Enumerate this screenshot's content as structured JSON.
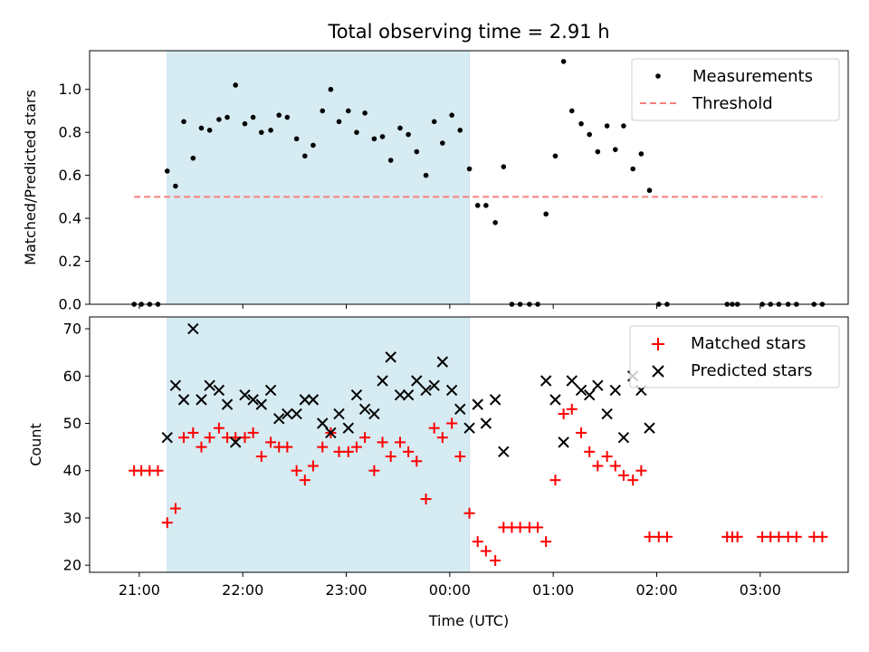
{
  "chart_data": [
    {
      "panel": "top",
      "type": "scatter",
      "title": "Total observing time = 2.91 h",
      "ylabel": "Matched/Predicted stars",
      "xlim_hours": [
        20.52,
        27.85
      ],
      "ylim": [
        0,
        1.18
      ],
      "yticks": [
        0.0,
        0.2,
        0.4,
        0.6,
        0.8,
        1.0
      ],
      "ytick_labels": [
        "0.0",
        "0.2",
        "0.4",
        "0.6",
        "0.8",
        "1.0"
      ],
      "shaded_span_hours": [
        21.27,
        24.19
      ],
      "legend": {
        "placement": "top-right",
        "entries": [
          "Measurements",
          "Threshold"
        ]
      },
      "threshold": {
        "name": "Threshold",
        "value": 0.5,
        "x_start_hours": 20.95,
        "x_end_hours": 27.6,
        "color": "#f87f7f"
      },
      "series": [
        {
          "name": "Measurements",
          "color": "#000000",
          "x_hours": [
            20.95,
            21.02,
            21.1,
            21.18,
            21.27,
            21.35,
            21.43,
            21.52,
            21.6,
            21.68,
            21.77,
            21.85,
            21.93,
            22.02,
            22.1,
            22.18,
            22.27,
            22.35,
            22.43,
            22.52,
            22.6,
            22.68,
            22.77,
            22.85,
            22.93,
            23.02,
            23.1,
            23.18,
            23.27,
            23.35,
            23.43,
            23.52,
            23.6,
            23.68,
            23.77,
            23.85,
            23.93,
            24.02,
            24.1,
            24.19,
            24.27,
            24.35,
            24.44,
            24.52,
            24.6,
            24.68,
            24.77,
            24.85,
            24.93,
            25.02,
            25.1,
            25.18,
            25.27,
            25.35,
            25.43,
            25.52,
            25.6,
            25.68,
            25.77,
            25.85,
            25.93,
            26.02,
            26.1,
            26.68,
            26.73,
            26.78,
            27.02,
            27.1,
            27.18,
            27.27,
            27.35,
            27.52,
            27.6
          ],
          "y": [
            0,
            0,
            0,
            0,
            0.62,
            0.55,
            0.85,
            0.68,
            0.82,
            0.81,
            0.86,
            0.87,
            1.02,
            0.84,
            0.87,
            0.8,
            0.81,
            0.88,
            0.87,
            0.77,
            0.69,
            0.74,
            0.9,
            1.0,
            0.85,
            0.9,
            0.8,
            0.89,
            0.77,
            0.78,
            0.67,
            0.82,
            0.79,
            0.71,
            0.6,
            0.85,
            0.75,
            0.88,
            0.81,
            0.63,
            0.46,
            0.46,
            0.38,
            0.64,
            0,
            0,
            0,
            0,
            0.42,
            0.69,
            1.13,
            0.9,
            0.84,
            0.79,
            0.71,
            0.83,
            0.72,
            0.83,
            0.63,
            0.7,
            0.53,
            0,
            0,
            0,
            0,
            0,
            0,
            0,
            0,
            0,
            0,
            0,
            0
          ]
        }
      ]
    },
    {
      "panel": "bottom",
      "type": "scatter",
      "xlabel": "Time (UTC)",
      "ylabel": "Count",
      "xlim_hours": [
        20.52,
        27.85
      ],
      "xticks_hours": [
        21,
        22,
        23,
        24,
        25,
        26,
        27
      ],
      "xtick_labels": [
        "21:00",
        "22:00",
        "23:00",
        "00:00",
        "01:00",
        "02:00",
        "03:00"
      ],
      "ylim": [
        18.5,
        72.5
      ],
      "yticks": [
        20,
        30,
        40,
        50,
        60,
        70
      ],
      "ytick_labels": [
        "20",
        "30",
        "40",
        "50",
        "60",
        "70"
      ],
      "shaded_span_hours": [
        21.27,
        24.19
      ],
      "legend": {
        "placement": "top-right",
        "entries": [
          "Matched stars",
          "Predicted stars"
        ]
      },
      "series": [
        {
          "name": "Matched stars",
          "marker": "+",
          "color": "#ff0000",
          "x_hours": [
            20.95,
            21.02,
            21.1,
            21.18,
            21.27,
            21.35,
            21.43,
            21.52,
            21.6,
            21.68,
            21.77,
            21.85,
            21.93,
            22.02,
            22.1,
            22.18,
            22.27,
            22.35,
            22.43,
            22.52,
            22.6,
            22.68,
            22.77,
            22.85,
            22.93,
            23.02,
            23.1,
            23.18,
            23.27,
            23.35,
            23.43,
            23.52,
            23.6,
            23.68,
            23.77,
            23.85,
            23.93,
            24.02,
            24.1,
            24.19,
            24.27,
            24.35,
            24.44,
            24.52,
            24.6,
            24.68,
            24.77,
            24.85,
            24.93,
            25.02,
            25.1,
            25.18,
            25.27,
            25.35,
            25.43,
            25.52,
            25.6,
            25.68,
            25.77,
            25.85,
            25.93,
            26.02,
            26.1,
            26.68,
            26.73,
            26.78,
            27.02,
            27.1,
            27.18,
            27.27,
            27.35,
            27.52,
            27.6
          ],
          "y": [
            40,
            40,
            40,
            40,
            29,
            32,
            47,
            48,
            45,
            47,
            49,
            47,
            47,
            47,
            48,
            43,
            46,
            45,
            45,
            40,
            38,
            41,
            45,
            48,
            44,
            44,
            45,
            47,
            40,
            46,
            43,
            46,
            44,
            42,
            34,
            49,
            47,
            50,
            43,
            31,
            25,
            23,
            21,
            28,
            28,
            28,
            28,
            28,
            25,
            38,
            52,
            53,
            48,
            44,
            41,
            43,
            41,
            39,
            38,
            40,
            26,
            26,
            26,
            26,
            26,
            26,
            26,
            26,
            26,
            26,
            26,
            26,
            26
          ]
        },
        {
          "name": "Predicted stars",
          "marker": "x",
          "color": "#000000",
          "x_hours": [
            21.27,
            21.35,
            21.43,
            21.52,
            21.6,
            21.68,
            21.77,
            21.85,
            21.93,
            22.02,
            22.1,
            22.18,
            22.27,
            22.35,
            22.43,
            22.52,
            22.6,
            22.68,
            22.77,
            22.85,
            22.93,
            23.02,
            23.1,
            23.18,
            23.27,
            23.35,
            23.43,
            23.52,
            23.6,
            23.68,
            23.77,
            23.85,
            23.93,
            24.02,
            24.1,
            24.19,
            24.27,
            24.35,
            24.44,
            24.52,
            24.93,
            25.02,
            25.1,
            25.18,
            25.27,
            25.35,
            25.43,
            25.52,
            25.6,
            25.68,
            25.77,
            25.85,
            25.93
          ],
          "y": [
            47,
            58,
            55,
            70,
            55,
            58,
            57,
            54,
            46,
            56,
            55,
            54,
            57,
            51,
            52,
            52,
            55,
            55,
            50,
            48,
            52,
            49,
            56,
            53,
            52,
            59,
            64,
            56,
            56,
            59,
            57,
            58,
            63,
            57,
            53,
            49,
            54,
            50,
            55,
            44,
            59,
            55,
            46,
            59,
            57,
            56,
            58,
            52,
            57,
            47,
            60,
            57,
            49
          ]
        }
      ]
    }
  ]
}
